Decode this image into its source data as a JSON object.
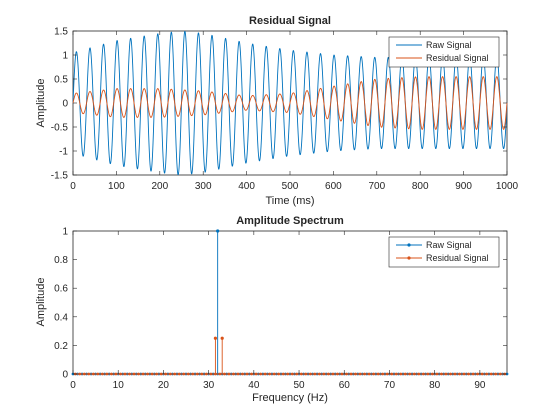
{
  "colors": {
    "raw": "#0072BD",
    "residual": "#D95319",
    "axis": "#262626",
    "background": "#ffffff"
  },
  "chart_data": [
    {
      "type": "line",
      "title": "Residual Signal",
      "xlabel": "Time (ms)",
      "ylabel": "Amplitude",
      "xlim": [
        0,
        1000
      ],
      "ylim": [
        -1.5,
        1.5
      ],
      "xticks": [
        0,
        100,
        200,
        300,
        400,
        500,
        600,
        700,
        800,
        900,
        1000
      ],
      "xtick_labels": [
        "0",
        "100",
        "200",
        "300",
        "400",
        "500",
        "600",
        "700",
        "800",
        "900",
        "1000"
      ],
      "yticks": [
        1.5,
        1,
        0.5,
        0,
        -0.5,
        -1,
        -1.5
      ],
      "ytick_labels": [
        "1.5",
        "1",
        "0.5",
        "0",
        "-0.5",
        "-1",
        "-1.5"
      ],
      "grid": false,
      "legend_position": "top-right",
      "series": [
        {
          "name": "Raw Signal",
          "model": "sinusoid",
          "frequency_hz": 32,
          "envelope_time_ms": [
            0,
            100,
            200,
            250,
            300,
            400,
            500,
            600,
            700,
            800,
            900,
            1000
          ],
          "envelope_amplitude": [
            1.05,
            1.3,
            1.45,
            1.5,
            1.45,
            1.25,
            1.1,
            1.0,
            0.95,
            0.95,
            0.95,
            0.95
          ]
        },
        {
          "name": "Residual Signal",
          "model": "sinusoid",
          "frequency_hz": 32,
          "envelope_time_ms": [
            0,
            100,
            200,
            300,
            400,
            500,
            600,
            700,
            800,
            900,
            1000
          ],
          "envelope_amplitude": [
            0.2,
            0.3,
            0.3,
            0.25,
            0.15,
            0.2,
            0.35,
            0.5,
            0.55,
            0.55,
            0.55
          ]
        }
      ]
    },
    {
      "type": "stem",
      "title": "Amplitude Spectrum",
      "xlabel": "Frequency (Hz)",
      "ylabel": "Amplitude",
      "xlim": [
        0,
        96
      ],
      "ylim": [
        0,
        1
      ],
      "xticks": [
        0,
        10,
        20,
        30,
        40,
        50,
        60,
        70,
        80,
        90
      ],
      "xtick_labels": [
        "0",
        "10",
        "20",
        "30",
        "40",
        "50",
        "60",
        "70",
        "80",
        "90"
      ],
      "yticks": [
        1,
        0.8,
        0.6,
        0.4,
        0.2,
        0
      ],
      "ytick_labels": [
        "1",
        "0.8",
        "0.6",
        "0.4",
        "0.2",
        "0"
      ],
      "grid": false,
      "legend_position": "top-right",
      "series": [
        {
          "name": "Raw Signal",
          "x_start": 0,
          "x_step": 1,
          "x_end": 96,
          "peaks": [
            {
              "x": 32,
              "y": 1.0
            }
          ]
        },
        {
          "name": "Residual Signal",
          "x_start": 0.5,
          "x_step": 1,
          "x_end": 95.5,
          "peaks": [
            {
              "x": 31.5,
              "y": 0.25
            },
            {
              "x": 33,
              "y": 0.25
            }
          ]
        }
      ]
    }
  ]
}
